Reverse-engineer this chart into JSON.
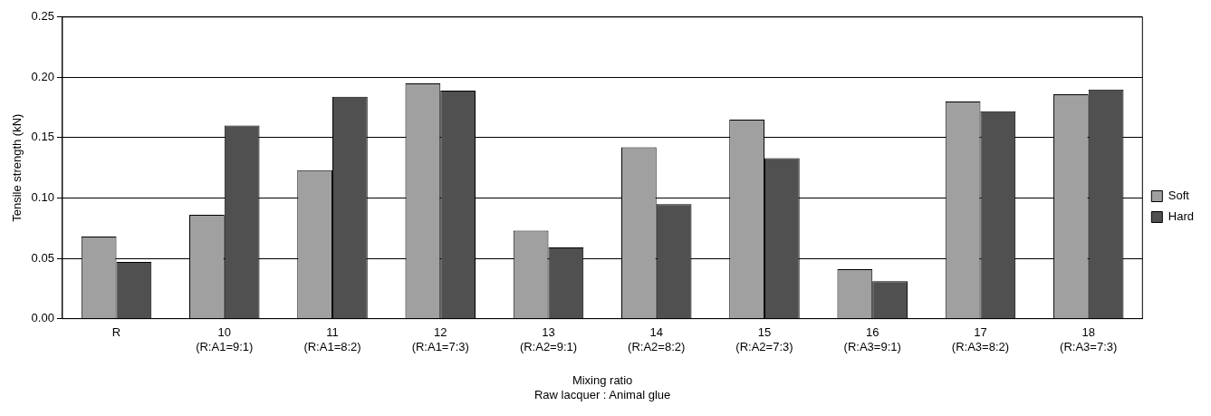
{
  "chart_data": {
    "type": "bar",
    "ylabel": "Tensile strength (kN)",
    "xlabel": "Mixing ratio\nRaw lacquer : Animal glue",
    "categories": [
      "R",
      "10\n(R:A1=9:1)",
      "11\n(R:A1=8:2)",
      "12\n(R:A1=7:3)",
      "13\n(R:A2=9:1)",
      "14\n(R:A2=8:2)",
      "15\n(R:A2=7:3)",
      "16\n(R:A3=9:1)",
      "17\n(R:A3=8:2)",
      "18\n(R:A3=7:3)"
    ],
    "series": [
      {
        "name": "Soft",
        "color": "#a0a0a0",
        "values": [
          0.068,
          0.086,
          0.123,
          0.195,
          0.073,
          0.142,
          0.165,
          0.041,
          0.18,
          0.186
        ]
      },
      {
        "name": "Hard",
        "color": "#505050",
        "values": [
          0.047,
          0.16,
          0.184,
          0.189,
          0.059,
          0.095,
          0.133,
          0.031,
          0.172,
          0.19
        ]
      }
    ],
    "ylim": [
      0,
      0.25
    ],
    "yticks": [
      {
        "value": 0,
        "label": "0.00"
      },
      {
        "value": 0.05,
        "label": "0.05"
      },
      {
        "value": 0.1,
        "label": "0.10"
      },
      {
        "value": 0.15,
        "label": "0.15"
      },
      {
        "value": 0.2,
        "label": "0.20"
      },
      {
        "value": 0.25,
        "label": "0.25"
      }
    ],
    "grid": "y",
    "legend": "right"
  }
}
